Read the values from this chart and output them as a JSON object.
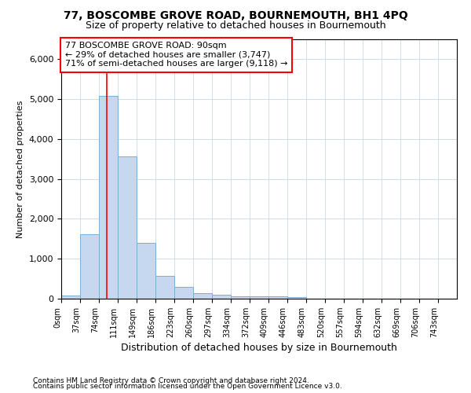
{
  "title": "77, BOSCOMBE GROVE ROAD, BOURNEMOUTH, BH1 4PQ",
  "subtitle": "Size of property relative to detached houses in Bournemouth",
  "xlabel": "Distribution of detached houses by size in Bournemouth",
  "ylabel": "Number of detached properties",
  "footer1": "Contains HM Land Registry data © Crown copyright and database right 2024.",
  "footer2": "Contains public sector information licensed under the Open Government Licence v3.0.",
  "bin_labels": [
    "0sqm",
    "37sqm",
    "74sqm",
    "111sqm",
    "149sqm",
    "186sqm",
    "223sqm",
    "260sqm",
    "297sqm",
    "334sqm",
    "372sqm",
    "409sqm",
    "446sqm",
    "483sqm",
    "520sqm",
    "557sqm",
    "594sqm",
    "632sqm",
    "669sqm",
    "706sqm",
    "743sqm"
  ],
  "bar_heights": [
    75,
    1625,
    5075,
    3575,
    1400,
    575,
    290,
    135,
    90,
    65,
    55,
    60,
    35,
    0,
    0,
    0,
    0,
    0,
    0,
    0,
    0
  ],
  "bar_color": "#c5d8f0",
  "bar_edge_color": "#7aaed6",
  "grid_color": "#d0dcea",
  "annotation_line1": "77 BOSCOMBE GROVE ROAD: 90sqm",
  "annotation_line2": "← 29% of detached houses are smaller (3,747)",
  "annotation_line3": "71% of semi-detached houses are larger (9,118) →",
  "annotation_box_color": "white",
  "annotation_box_edge_color": "red",
  "vline_x": 90,
  "vline_color": "red",
  "ylim": [
    0,
    6500
  ],
  "bin_width": 37,
  "background_color": "white",
  "title_fontsize": 10,
  "subtitle_fontsize": 9,
  "ylabel_fontsize": 8,
  "xlabel_fontsize": 9,
  "ytick_fontsize": 8,
  "xtick_fontsize": 7,
  "annotation_fontsize": 8,
  "footer_fontsize": 6.5
}
